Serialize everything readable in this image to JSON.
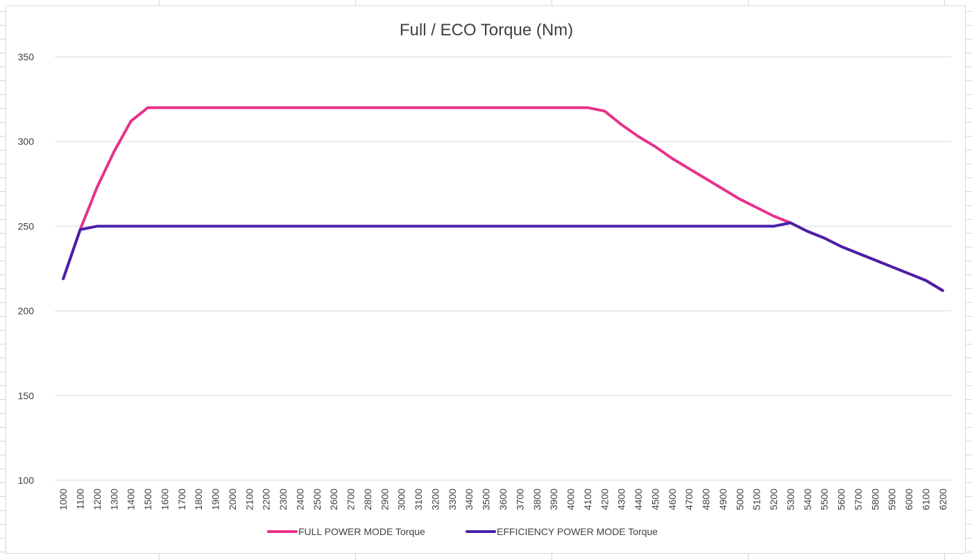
{
  "chart_data": {
    "type": "line",
    "title": "Full / ECO Torque (Nm)",
    "xlabel": "",
    "ylabel": "",
    "x": [
      1000,
      1100,
      1200,
      1300,
      1400,
      1500,
      1600,
      1700,
      1800,
      1900,
      2000,
      2100,
      2200,
      2300,
      2400,
      2500,
      2600,
      2700,
      2800,
      2900,
      3000,
      3100,
      3200,
      3300,
      3400,
      3500,
      3600,
      3700,
      3800,
      3900,
      4000,
      4100,
      4200,
      4300,
      4400,
      4500,
      4600,
      4700,
      4800,
      4900,
      5000,
      5100,
      5200,
      5300,
      5400,
      5500,
      5600,
      5700,
      5800,
      5900,
      6000,
      6100,
      6200
    ],
    "ylim": [
      100,
      350
    ],
    "yticks": [
      100,
      150,
      200,
      250,
      300,
      350
    ],
    "grid": true,
    "legend_position": "bottom",
    "series": [
      {
        "name": "FULL POWER MODE Torque",
        "color": "#e8318a",
        "values": [
          219,
          248,
          273,
          294,
          312,
          320,
          320,
          320,
          320,
          320,
          320,
          320,
          320,
          320,
          320,
          320,
          320,
          320,
          320,
          320,
          320,
          320,
          320,
          320,
          320,
          320,
          320,
          320,
          320,
          320,
          320,
          320,
          318,
          310,
          303,
          297,
          290,
          284,
          278,
          272,
          266,
          261,
          256,
          252,
          247,
          243,
          238,
          234,
          230,
          226,
          222,
          218,
          212
        ]
      },
      {
        "name": "EFFICIENCY POWER MODE Torque",
        "color": "#4a1fa8",
        "values": [
          219,
          248,
          250,
          250,
          250,
          250,
          250,
          250,
          250,
          250,
          250,
          250,
          250,
          250,
          250,
          250,
          250,
          250,
          250,
          250,
          250,
          250,
          250,
          250,
          250,
          250,
          250,
          250,
          250,
          250,
          250,
          250,
          250,
          250,
          250,
          250,
          250,
          250,
          250,
          250,
          250,
          250,
          250,
          252,
          247,
          243,
          238,
          234,
          230,
          226,
          222,
          218,
          212
        ]
      }
    ]
  }
}
